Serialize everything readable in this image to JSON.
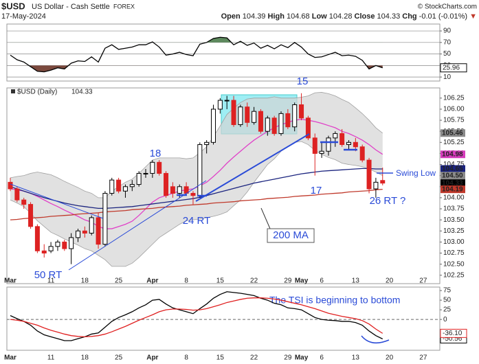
{
  "header": {
    "symbol": "$USD",
    "name": "US Dollar - Cash Settle",
    "exchange": "FOREX",
    "date": "17-May-2024",
    "source": "© StockCharts.com",
    "quote": [
      {
        "label": "Open",
        "value": 104.39
      },
      {
        "label": "High",
        "value": 104.68
      },
      {
        "label": "Low",
        "value": 104.28
      },
      {
        "label": "Close",
        "value": 104.33
      }
    ],
    "change": {
      "label": "Chg",
      "value": -0.01,
      "percent": {
        "value": -0.01,
        "label": "(-0.01%)"
      }
    }
  },
  "chart_data": [
    {
      "type": "line",
      "ylim": [
        3,
        102
      ],
      "yticks": [
        90,
        70,
        50,
        30,
        10
      ],
      "grid": true,
      "overbought_fill": "#5e8a5e",
      "oversold_fill": "#7c4a3e",
      "series": [
        {
          "color": "#000000",
          "end_label": "25.96",
          "values": [
            48,
            40,
            36,
            28,
            20,
            19,
            22,
            26,
            24,
            34,
            38,
            37,
            45,
            36,
            60,
            66,
            58,
            60,
            62,
            66,
            66,
            71,
            62,
            48,
            50,
            53,
            49,
            47,
            67,
            70,
            77,
            79,
            78,
            66,
            72,
            65,
            69,
            60,
            65,
            59,
            66,
            61,
            70,
            62,
            50,
            44,
            45,
            49,
            53,
            47,
            48,
            46,
            39,
            24,
            30,
            25.96
          ]
        }
      ]
    },
    {
      "type": "candlestick",
      "categories": [
        "Mar",
        null,
        null,
        null,
        null,
        null,
        "11",
        null,
        null,
        null,
        null,
        "18",
        null,
        null,
        null,
        null,
        "25",
        null,
        null,
        null,
        null,
        "Apr",
        null,
        null,
        null,
        null,
        "8",
        null,
        null,
        null,
        null,
        "15",
        null,
        null,
        null,
        null,
        "22",
        null,
        null,
        null,
        null,
        "29",
        null,
        "May",
        null,
        null,
        "6",
        null,
        null,
        null,
        null,
        "13",
        null,
        null,
        null,
        null,
        "20",
        null,
        null,
        null,
        null,
        "27",
        null,
        null
      ],
      "open": [
        104.35,
        104.2,
        103.95,
        103.85,
        103.35,
        102.8,
        102.8,
        102.9,
        103.0,
        102.85,
        103.1,
        103.25,
        103.2,
        103.55,
        102.95,
        104.1,
        104.4,
        104.15,
        104.25,
        104.3,
        104.55,
        104.55,
        104.8,
        104.55,
        104.25,
        104.1,
        104.25,
        104.1,
        104.05,
        105.2,
        105.25,
        106.0,
        106.2,
        106.2,
        105.65,
        106.05,
        105.7,
        105.95,
        105.5,
        105.8,
        105.45,
        105.9,
        105.6,
        106.1,
        105.8,
        105.35,
        105.0,
        105.05,
        105.35,
        105.45,
        105.2,
        105.25,
        105.15,
        104.85,
        104.2,
        104.39,
        null,
        null,
        null,
        null,
        null,
        null,
        null,
        null
      ],
      "high": [
        104.45,
        104.25,
        104.0,
        103.9,
        103.4,
        102.95,
        103.0,
        103.05,
        103.05,
        103.2,
        103.3,
        103.35,
        103.6,
        103.65,
        104.15,
        104.45,
        104.45,
        104.3,
        104.4,
        104.6,
        104.65,
        104.85,
        104.85,
        104.6,
        104.35,
        104.3,
        104.35,
        104.15,
        105.25,
        105.3,
        106.1,
        106.25,
        106.3,
        106.3,
        106.1,
        106.15,
        106.05,
        106.0,
        105.85,
        105.85,
        105.95,
        106.0,
        106.15,
        106.36,
        105.85,
        105.45,
        105.25,
        105.4,
        105.5,
        105.55,
        105.3,
        105.35,
        105.2,
        104.9,
        104.45,
        104.68,
        null,
        null,
        null,
        null,
        null,
        null,
        null,
        null
      ],
      "low": [
        104.15,
        103.9,
        103.75,
        103.3,
        102.75,
        102.65,
        102.75,
        102.8,
        102.8,
        102.5,
        103.0,
        103.1,
        103.15,
        102.85,
        102.9,
        104.05,
        104.1,
        104.0,
        104.15,
        104.25,
        104.45,
        104.45,
        104.5,
        104.0,
        104.0,
        104.0,
        104.05,
        103.85,
        104.0,
        105.0,
        105.2,
        105.9,
        106.0,
        105.6,
        105.6,
        105.6,
        105.65,
        105.45,
        105.4,
        105.4,
        105.4,
        105.55,
        105.5,
        105.75,
        105.3,
        104.5,
        104.9,
        104.95,
        105.15,
        105.15,
        105.1,
        105.05,
        104.8,
        104.1,
        104.0,
        104.28,
        null,
        null,
        null,
        null,
        null,
        null,
        null,
        null
      ],
      "close": [
        104.2,
        103.95,
        103.85,
        103.35,
        102.8,
        102.75,
        102.9,
        103.0,
        102.85,
        103.1,
        103.25,
        103.2,
        103.55,
        102.95,
        104.1,
        104.4,
        104.15,
        104.25,
        104.3,
        104.55,
        104.55,
        104.8,
        104.55,
        104.05,
        104.1,
        104.25,
        104.1,
        104.05,
        105.2,
        105.25,
        106.0,
        106.2,
        106.2,
        105.65,
        106.05,
        105.7,
        105.95,
        105.5,
        105.8,
        105.45,
        105.9,
        105.6,
        106.1,
        105.8,
        105.35,
        105.0,
        105.05,
        105.35,
        105.45,
        105.2,
        105.25,
        105.15,
        104.85,
        104.2,
        104.35,
        104.33,
        null,
        null,
        null,
        null,
        null,
        null,
        null,
        null
      ],
      "up_color": "#000000",
      "down_color": "#dd2222",
      "band_fill": "#d4d4d4",
      "series": [
        {
          "color": "#a0a0a0",
          "values": [
            104.45,
            104.48,
            104.5,
            104.55,
            104.58,
            104.55,
            104.52,
            104.45,
            104.37,
            104.3,
            104.23,
            104.15,
            104.1,
            104.0,
            104.0,
            104.15,
            104.25,
            104.35,
            104.42,
            104.55,
            104.7,
            104.85,
            104.9,
            104.9,
            104.9,
            104.9,
            104.88,
            104.9,
            105.02,
            105.15,
            105.38,
            105.62,
            105.88,
            106.02,
            106.15,
            106.23,
            106.25,
            106.25,
            106.25,
            106.28,
            106.25,
            106.25,
            106.25,
            106.27,
            106.3,
            106.37,
            106.38,
            106.35,
            106.3,
            106.22,
            106.15,
            106.03,
            105.9,
            105.75,
            105.58,
            105.46,
            null,
            null,
            null,
            null,
            null,
            null,
            null,
            null
          ]
        },
        {
          "color": "#a0a0a0",
          "values": [
            103.95,
            103.88,
            103.8,
            103.65,
            103.48,
            103.35,
            103.22,
            103.15,
            103.07,
            103.0,
            102.93,
            102.85,
            102.8,
            102.7,
            102.6,
            102.45,
            102.45,
            102.45,
            102.52,
            102.65,
            102.8,
            102.95,
            103.1,
            103.2,
            103.3,
            103.4,
            103.48,
            103.5,
            103.52,
            103.55,
            103.58,
            103.62,
            103.68,
            103.82,
            103.95,
            104.13,
            104.35,
            104.55,
            104.75,
            104.88,
            105.05,
            105.15,
            105.25,
            105.27,
            105.2,
            105.07,
            104.98,
            104.91,
            104.86,
            104.78,
            104.75,
            104.73,
            104.7,
            104.65,
            104.58,
            104.5,
            null,
            null,
            null,
            null,
            null,
            null,
            null,
            null
          ]
        },
        {
          "color": "#e040c8",
          "values": [
            104.2,
            104.18,
            104.15,
            104.1,
            104.03,
            103.95,
            103.87,
            103.8,
            103.72,
            103.65,
            103.58,
            103.5,
            103.45,
            103.35,
            103.3,
            103.3,
            103.35,
            103.4,
            103.47,
            103.6,
            103.75,
            103.9,
            104.0,
            104.05,
            104.1,
            104.15,
            104.18,
            104.2,
            104.27,
            104.35,
            104.48,
            104.62,
            104.78,
            104.92,
            105.05,
            105.18,
            105.3,
            105.4,
            105.5,
            105.58,
            105.65,
            105.7,
            105.75,
            105.77,
            105.75,
            105.72,
            105.68,
            105.63,
            105.58,
            105.5,
            105.45,
            105.38,
            105.3,
            105.2,
            105.08,
            104.98,
            null,
            null,
            null,
            null,
            null,
            null,
            null,
            null
          ]
        },
        {
          "color": "#1a237e",
          "values": [
            104.25,
            104.2,
            104.15,
            104.1,
            104.05,
            104.0,
            103.96,
            103.92,
            103.88,
            103.85,
            103.82,
            103.8,
            103.78,
            103.76,
            103.76,
            103.77,
            103.78,
            103.79,
            103.8,
            103.82,
            103.84,
            103.86,
            103.88,
            103.9,
            103.92,
            103.94,
            103.96,
            103.98,
            104.01,
            104.05,
            104.09,
            104.13,
            104.17,
            104.21,
            104.25,
            104.29,
            104.33,
            104.36,
            104.39,
            104.42,
            104.45,
            104.48,
            104.51,
            104.54,
            104.56,
            104.58,
            104.6,
            104.61,
            104.62,
            104.63,
            104.64,
            104.65,
            104.66,
            104.66,
            104.65,
            104.65,
            null,
            null,
            null,
            null,
            null,
            null,
            null,
            null
          ]
        },
        {
          "color": "#c0392b",
          "values": [
            103.5,
            103.51,
            103.53,
            103.54,
            103.55,
            103.56,
            103.58,
            103.59,
            103.6,
            103.61,
            103.63,
            103.64,
            103.65,
            103.66,
            103.68,
            103.69,
            103.7,
            103.71,
            103.73,
            103.74,
            103.75,
            103.76,
            103.78,
            103.79,
            103.8,
            103.81,
            103.83,
            103.84,
            103.85,
            103.86,
            103.88,
            103.89,
            103.9,
            103.91,
            103.93,
            103.94,
            103.95,
            103.96,
            103.98,
            103.99,
            104.0,
            104.01,
            104.03,
            104.04,
            104.05,
            104.06,
            104.08,
            104.09,
            104.1,
            104.11,
            104.13,
            104.14,
            104.15,
            104.16,
            104.18,
            104.19,
            null,
            null,
            null,
            null,
            null,
            null,
            null,
            null
          ]
        }
      ],
      "ylim": [
        102.06,
        106.48
      ],
      "yticks": [
        106.25,
        {
          "value": 106,
          "label": "106.00"
        },
        105.75,
        {
          "value": 105.5,
          "label": "105.50"
        },
        105.25,
        {
          "value": 105,
          "label": "105.00"
        },
        104.75,
        {
          "value": 104.5,
          "label": "104.50"
        },
        104.25,
        {
          "value": 104,
          "label": "104.00"
        },
        103.75,
        {
          "value": 103.5,
          "label": "103.50"
        },
        103.25,
        {
          "value": 103,
          "label": "103.00"
        },
        102.75,
        {
          "value": 102.5,
          "label": "102.50"
        },
        102.25
      ],
      "legend": {
        "label": "$USD (Daily)",
        "value": 104.33,
        "color": "#333333"
      },
      "markers": [
        {
          "value": 105.46,
          "color": "#8a8a8a"
        },
        {
          "value": 104.98,
          "color": "#d63cbc"
        },
        {
          "value": 104.65,
          "color": "#1a237e"
        },
        {
          "value": 104.5,
          "label": "104.50",
          "color": "#8a8a8a"
        },
        {
          "value": 104.33,
          "color": "#000000"
        },
        {
          "value": 104.19,
          "color": "#c0392b"
        }
      ],
      "annotations": [
        "18",
        "24 RT",
        "15",
        "17",
        "26 RT ?",
        "50 RT",
        "200 MA",
        "Swing Low"
      ]
    },
    {
      "type": "line",
      "categories": [
        "Mar",
        null,
        null,
        null,
        null,
        null,
        "11",
        null,
        null,
        null,
        null,
        "18",
        null,
        null,
        null,
        null,
        "25",
        null,
        null,
        null,
        null,
        "Apr",
        null,
        null,
        null,
        null,
        "8",
        null,
        null,
        null,
        null,
        "15",
        null,
        null,
        null,
        null,
        "22",
        null,
        null,
        null,
        null,
        "29",
        null,
        "May",
        null,
        null,
        "6",
        null,
        null,
        null,
        null,
        "13",
        null,
        null,
        null,
        null,
        "20",
        null,
        null,
        null,
        null,
        "27",
        null,
        null
      ],
      "ylim": [
        -80,
        84
      ],
      "yticks": [
        75,
        50,
        25,
        0
      ],
      "zero_line": true,
      "series": [
        {
          "color": "#000000",
          "end_label": "-50.56",
          "values": [
            10,
            2,
            -5,
            -15,
            -30,
            -40,
            -45,
            -50,
            -55,
            -55,
            -50,
            -45,
            -38,
            -35,
            -20,
            -5,
            5,
            12,
            20,
            30,
            38,
            50,
            52,
            40,
            30,
            25,
            20,
            15,
            28,
            40,
            55,
            65,
            72,
            70,
            68,
            65,
            62,
            55,
            50,
            42,
            38,
            30,
            28,
            25,
            15,
            5,
            0,
            -2,
            -3,
            -5,
            -5,
            -8,
            -15,
            -30,
            -42,
            -50.56,
            null,
            null,
            null,
            null,
            null,
            null,
            null,
            null
          ]
        },
        {
          "color": "#e02020",
          "end_label": "-36.10",
          "values": [
            0,
            -2,
            -5,
            -10,
            -15,
            -22,
            -28,
            -33,
            -38,
            -42,
            -44,
            -45,
            -44,
            -42,
            -38,
            -32,
            -25,
            -18,
            -10,
            -2,
            5,
            12,
            20,
            25,
            27,
            27,
            26,
            24,
            25,
            28,
            33,
            38,
            44,
            48,
            52,
            55,
            56,
            56,
            55,
            53,
            50,
            46,
            42,
            38,
            33,
            28,
            22,
            16,
            12,
            8,
            5,
            2,
            -3,
            -12,
            -25,
            -36.1,
            null,
            null,
            null,
            null,
            null,
            null,
            null,
            null
          ]
        }
      ],
      "annotations": [
        "The TSI is beginning to bottom"
      ]
    }
  ]
}
